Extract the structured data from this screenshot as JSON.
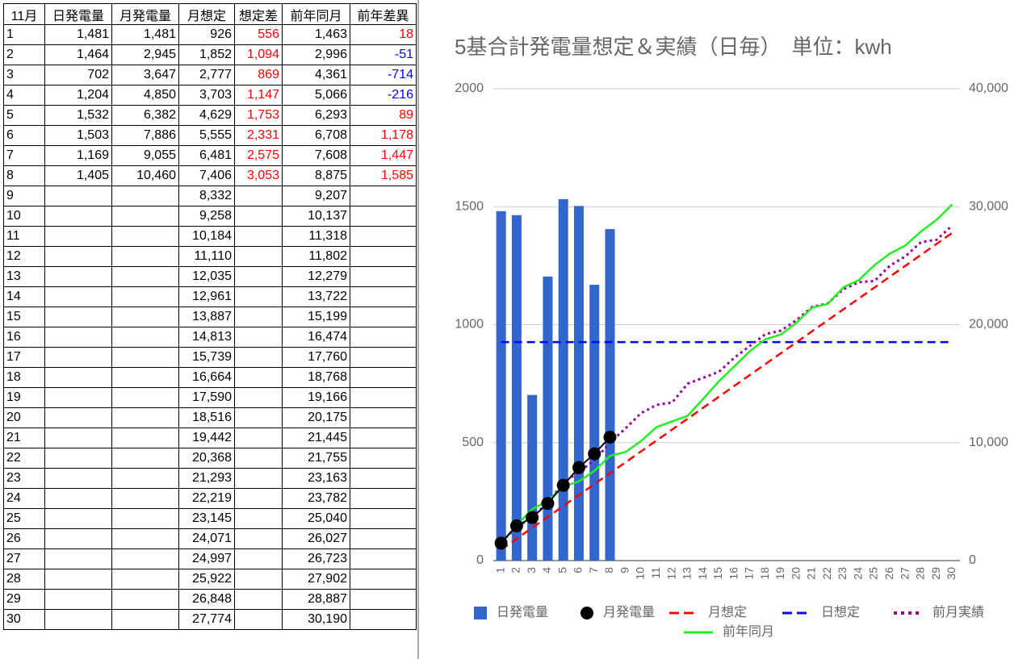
{
  "table": {
    "header": [
      "11月",
      "日発電量",
      "月発電量",
      "月想定",
      "想定差",
      "前年同月",
      "前年差異"
    ],
    "diff_color": "#ff0000",
    "negative_color": "#0000ff",
    "rows": [
      [
        "1",
        "1,481",
        "1,481",
        "926",
        "556",
        "1,463",
        "18"
      ],
      [
        "2",
        "1,464",
        "2,945",
        "1,852",
        "1,094",
        "2,996",
        "-51"
      ],
      [
        "3",
        "702",
        "3,647",
        "2,777",
        "869",
        "4,361",
        "-714"
      ],
      [
        "4",
        "1,204",
        "4,850",
        "3,703",
        "1,147",
        "5,066",
        "-216"
      ],
      [
        "5",
        "1,532",
        "6,382",
        "4,629",
        "1,753",
        "6,293",
        "89"
      ],
      [
        "6",
        "1,503",
        "7,886",
        "5,555",
        "2,331",
        "6,708",
        "1,178"
      ],
      [
        "7",
        "1,169",
        "9,055",
        "6,481",
        "2,575",
        "7,608",
        "1,447"
      ],
      [
        "8",
        "1,405",
        "10,460",
        "7,406",
        "3,053",
        "8,875",
        "1,585"
      ],
      [
        "9",
        null,
        null,
        "8,332",
        null,
        "9,207",
        null
      ],
      [
        "10",
        null,
        null,
        "9,258",
        null,
        "10,137",
        null
      ],
      [
        "11",
        null,
        null,
        "10,184",
        null,
        "11,318",
        null
      ],
      [
        "12",
        null,
        null,
        "11,110",
        null,
        "11,802",
        null
      ],
      [
        "13",
        null,
        null,
        "12,035",
        null,
        "12,279",
        null
      ],
      [
        "14",
        null,
        null,
        "12,961",
        null,
        "13,722",
        null
      ],
      [
        "15",
        null,
        null,
        "13,887",
        null,
        "15,199",
        null
      ],
      [
        "16",
        null,
        null,
        "14,813",
        null,
        "16,474",
        null
      ],
      [
        "17",
        null,
        null,
        "15,739",
        null,
        "17,760",
        null
      ],
      [
        "18",
        null,
        null,
        "16,664",
        null,
        "18,768",
        null
      ],
      [
        "19",
        null,
        null,
        "17,590",
        null,
        "19,166",
        null
      ],
      [
        "20",
        null,
        null,
        "18,516",
        null,
        "20,175",
        null
      ],
      [
        "21",
        null,
        null,
        "19,442",
        null,
        "21,445",
        null
      ],
      [
        "22",
        null,
        null,
        "20,368",
        null,
        "21,755",
        null
      ],
      [
        "23",
        null,
        null,
        "21,293",
        null,
        "23,163",
        null
      ],
      [
        "24",
        null,
        null,
        "22,219",
        null,
        "23,782",
        null
      ],
      [
        "25",
        null,
        null,
        "23,145",
        null,
        "25,040",
        null
      ],
      [
        "26",
        null,
        null,
        "24,071",
        null,
        "26,027",
        null
      ],
      [
        "27",
        null,
        null,
        "24,997",
        null,
        "26,723",
        null
      ],
      [
        "28",
        null,
        null,
        "25,922",
        null,
        "27,902",
        null
      ],
      [
        "29",
        null,
        null,
        "26,848",
        null,
        "28,887",
        null
      ],
      [
        "30",
        null,
        null,
        "27,774",
        null,
        "30,190",
        null
      ]
    ]
  },
  "chart_data": {
    "type": "combo",
    "title": "5基合計発電量想定＆実績（日毎）　単位：kwh",
    "categories": [
      "1",
      "2",
      "3",
      "4",
      "5",
      "6",
      "7",
      "8",
      "9",
      "10",
      "11",
      "12",
      "13",
      "14",
      "15",
      "16",
      "17",
      "18",
      "19",
      "20",
      "21",
      "22",
      "23",
      "24",
      "25",
      "26",
      "27",
      "28",
      "29",
      "30"
    ],
    "ylim": [
      0,
      2000
    ],
    "yticks": [
      0,
      500,
      1000,
      1500,
      2000
    ],
    "y2lim": [
      0,
      40000
    ],
    "y2ticks": [
      0,
      {
        "value": 10000,
        "label": "10,000"
      },
      {
        "value": 20000,
        "label": "20,000"
      },
      {
        "value": 30000,
        "label": "30,000"
      },
      {
        "value": 40000,
        "label": "40,000"
      }
    ],
    "grid": true,
    "legend": "bottom",
    "series": [
      {
        "name": "日発電量",
        "kind": "bar",
        "color": "#3366cc",
        "values": [
          1481,
          1464,
          702,
          1204,
          1532,
          1503,
          1169,
          1405,
          null,
          null,
          null,
          null,
          null,
          null,
          null,
          null,
          null,
          null,
          null,
          null,
          null,
          null,
          null,
          null,
          null,
          null,
          null,
          null,
          null,
          null
        ]
      },
      {
        "name": "月発電量",
        "kind": "dots",
        "axis": "y2",
        "color": "#000000",
        "values": [
          1481,
          2945,
          3647,
          4850,
          6382,
          7886,
          9055,
          10460,
          null,
          null,
          null,
          null,
          null,
          null,
          null,
          null,
          null,
          null,
          null,
          null,
          null,
          null,
          null,
          null,
          null,
          null,
          null,
          null,
          null,
          null
        ]
      },
      {
        "name": "月想定",
        "kind": "dash",
        "axis": "y2",
        "color": "#ff0000",
        "values": [
          926,
          1852,
          2777,
          3703,
          4629,
          5555,
          6481,
          7406,
          8332,
          9258,
          10184,
          11110,
          12035,
          12961,
          13887,
          14813,
          15739,
          16664,
          17590,
          18516,
          19442,
          20368,
          21293,
          22219,
          23145,
          24071,
          24997,
          25922,
          26848,
          27774
        ]
      },
      {
        "name": "日想定",
        "kind": "dash",
        "color": "#0000ff",
        "values": [
          926,
          926,
          926,
          926,
          926,
          926,
          926,
          926,
          926,
          926,
          926,
          926,
          926,
          926,
          926,
          926,
          926,
          926,
          926,
          926,
          926,
          926,
          926,
          926,
          926,
          926,
          926,
          926,
          926,
          926
        ]
      },
      {
        "name": "前月実績",
        "kind": "dot",
        "axis": "y2",
        "color": "#990099",
        "values": [
          1600,
          2800,
          3700,
          4900,
          6600,
          7500,
          8500,
          10000,
          11200,
          12500,
          13200,
          13400,
          15000,
          15500,
          16000,
          17200,
          18200,
          19200,
          19500,
          20400,
          21500,
          21800,
          23000,
          23600,
          23700,
          25000,
          25800,
          27000,
          27200,
          28400
        ]
      },
      {
        "name": "前年同月",
        "kind": "line",
        "axis": "y2",
        "color": "#22ee22",
        "values": [
          1463,
          2996,
          4361,
          5066,
          6293,
          6708,
          7608,
          8875,
          9207,
          10137,
          11318,
          11802,
          12279,
          13722,
          15199,
          16474,
          17760,
          18768,
          19166,
          20175,
          21445,
          21755,
          23163,
          23782,
          25040,
          26027,
          26723,
          27902,
          28887,
          30190
        ]
      }
    ]
  }
}
